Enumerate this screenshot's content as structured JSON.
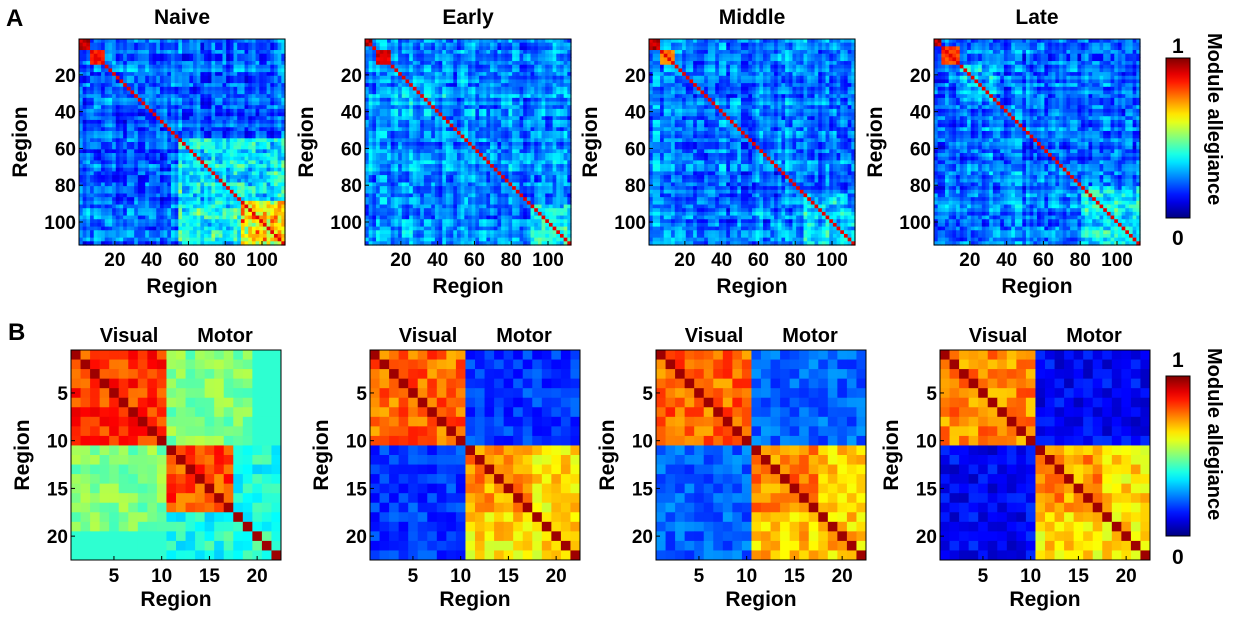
{
  "figure": {
    "row_a_label": "A",
    "row_b_label": "B"
  },
  "chart_data": [
    {
      "type": "heatmap",
      "row": "A",
      "panels": [
        {
          "title": "Naive",
          "clusters": [
            [
              0,
              5,
              1.0
            ],
            [
              6,
              13,
              0.9
            ]
          ],
          "diag_value": 0.9,
          "extra_blocks": [
            [
              8,
              40,
              0.2
            ],
            [
              55,
              112,
              0.35
            ],
            [
              88,
              112,
              0.5
            ]
          ],
          "base": 0.18
        },
        {
          "title": "Early",
          "clusters": [
            [
              0,
              4,
              1.0
            ],
            [
              6,
              13,
              0.95
            ]
          ],
          "diag_value": 0.9,
          "extra_blocks": [
            [
              15,
              45,
              0.25
            ],
            [
              90,
              112,
              0.35
            ]
          ],
          "base": 0.22
        },
        {
          "title": "Middle",
          "clusters": [
            [
              0,
              5,
              1.0
            ],
            [
              6,
              13,
              0.8
            ]
          ],
          "diag_value": 0.9,
          "extra_blocks": [
            [
              20,
              50,
              0.2
            ],
            [
              85,
              112,
              0.3
            ]
          ],
          "base": 0.2
        },
        {
          "title": "Late",
          "clusters": [
            [
              0,
              4,
              1.0
            ],
            [
              5,
              13,
              0.85
            ]
          ],
          "diag_value": 0.9,
          "extra_blocks": [
            [
              14,
              35,
              0.3
            ],
            [
              80,
              112,
              0.35
            ]
          ],
          "base": 0.2
        }
      ],
      "n": 112,
      "xticks": [
        20,
        40,
        60,
        80,
        100
      ],
      "yticks": [
        20,
        40,
        60,
        80,
        100
      ],
      "xlabel": "Region",
      "ylabel": "Region",
      "colorbar": {
        "min": 0,
        "max": 1,
        "label": "Module allegiance"
      }
    },
    {
      "type": "heatmap",
      "row": "B",
      "block_labels": [
        "Visual",
        "Motor"
      ],
      "n": 22,
      "xticks": [
        5,
        10,
        15,
        20
      ],
      "yticks": [
        5,
        10,
        15,
        20
      ],
      "xlabel": "Region",
      "ylabel": "Region",
      "colorbar": {
        "min": 0,
        "max": 1,
        "label": "Module allegiance"
      },
      "panels": [
        {
          "name": "Naive",
          "visual_within": 0.9,
          "motor_within": 0.88,
          "between": 0.5,
          "tail_value": 0.4
        },
        {
          "name": "Early",
          "visual_within": 0.85,
          "motor_within": 0.8,
          "between": 0.18,
          "tail_value": 0.65
        },
        {
          "name": "Middle",
          "visual_within": 0.85,
          "motor_within": 0.82,
          "between": 0.22,
          "tail_value": 0.68
        },
        {
          "name": "Late",
          "visual_within": 0.82,
          "motor_within": 0.8,
          "between": 0.12,
          "tail_value": 0.65
        }
      ]
    }
  ]
}
